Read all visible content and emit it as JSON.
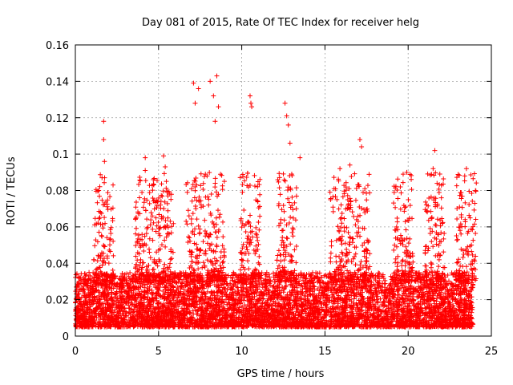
{
  "chart_data": {
    "type": "scatter",
    "title": "Day 081 of 2015, Rate Of TEC Index for receiver helg",
    "xlabel": "GPS time / hours",
    "ylabel": "ROTI / TECUs",
    "xlim": [
      0,
      25
    ],
    "ylim": [
      0,
      0.16
    ],
    "x_ticks": [
      0,
      5,
      10,
      15,
      20,
      25
    ],
    "x_tick_labels": [
      "0",
      "5",
      "10",
      "15",
      "20",
      "25"
    ],
    "y_ticks": [
      0,
      0.02,
      0.04,
      0.06,
      0.08,
      0.1,
      0.12,
      0.14,
      0.16
    ],
    "y_tick_labels": [
      "0",
      "0.02",
      "0.04",
      "0.06",
      "0.08",
      "0.1",
      "0.12",
      "0.14",
      "0.16"
    ],
    "grid": true,
    "marker": "+",
    "color": "#ff0000",
    "x_range_of_data": [
      0,
      23.9
    ],
    "typical_band": [
      0.005,
      0.035
    ],
    "notable_points": [
      {
        "x": 1.7,
        "y": 0.118
      },
      {
        "x": 1.7,
        "y": 0.108
      },
      {
        "x": 1.75,
        "y": 0.096
      },
      {
        "x": 4.2,
        "y": 0.098
      },
      {
        "x": 4.2,
        "y": 0.091
      },
      {
        "x": 5.3,
        "y": 0.099
      },
      {
        "x": 5.4,
        "y": 0.093
      },
      {
        "x": 7.1,
        "y": 0.139
      },
      {
        "x": 7.2,
        "y": 0.128
      },
      {
        "x": 7.4,
        "y": 0.136
      },
      {
        "x": 8.1,
        "y": 0.14
      },
      {
        "x": 8.3,
        "y": 0.132
      },
      {
        "x": 8.5,
        "y": 0.143
      },
      {
        "x": 8.6,
        "y": 0.126
      },
      {
        "x": 8.4,
        "y": 0.118
      },
      {
        "x": 10.5,
        "y": 0.132
      },
      {
        "x": 10.55,
        "y": 0.128
      },
      {
        "x": 10.6,
        "y": 0.126
      },
      {
        "x": 12.6,
        "y": 0.128
      },
      {
        "x": 12.7,
        "y": 0.121
      },
      {
        "x": 12.8,
        "y": 0.116
      },
      {
        "x": 12.9,
        "y": 0.106
      },
      {
        "x": 13.5,
        "y": 0.098
      },
      {
        "x": 15.9,
        "y": 0.092
      },
      {
        "x": 16.5,
        "y": 0.094
      },
      {
        "x": 17.1,
        "y": 0.108
      },
      {
        "x": 17.2,
        "y": 0.104
      },
      {
        "x": 19.7,
        "y": 0.089
      },
      {
        "x": 21.6,
        "y": 0.102
      },
      {
        "x": 21.5,
        "y": 0.092
      },
      {
        "x": 23.5,
        "y": 0.092
      },
      {
        "x": 23.4,
        "y": 0.088
      }
    ],
    "activity_peaks_hours": [
      1.7,
      4.2,
      5.3,
      7.2,
      8.4,
      10.5,
      12.7,
      15.9,
      17.1,
      19.7,
      21.6,
      23.5
    ],
    "point_count": 6000
  }
}
